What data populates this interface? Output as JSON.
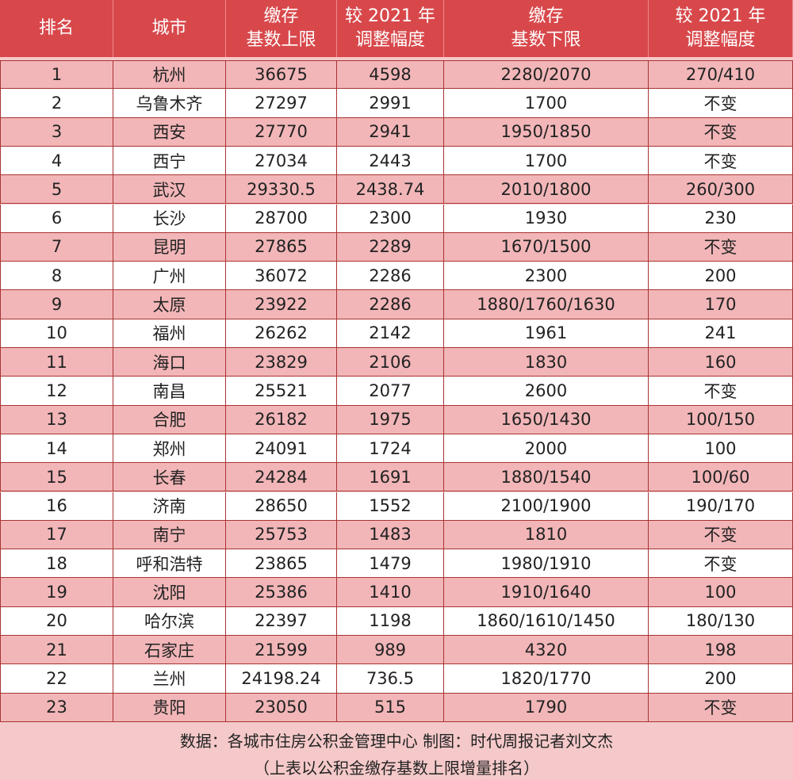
{
  "table": {
    "header": [
      [
        "排名"
      ],
      [
        "城市"
      ],
      [
        "缴存",
        "基数上限"
      ],
      [
        "较 2021 年",
        "调整幅度"
      ],
      [
        "缴存",
        "基数下限"
      ],
      [
        "较 2021 年",
        "调整幅度"
      ]
    ],
    "rows": [
      [
        "1",
        "杭州",
        "36675",
        "4598",
        "2280/2070",
        "270/410"
      ],
      [
        "2",
        "乌鲁木齐",
        "27297",
        "2991",
        "1700",
        "不变"
      ],
      [
        "3",
        "西安",
        "27770",
        "2941",
        "1950/1850",
        "不变"
      ],
      [
        "4",
        "西宁",
        "27034",
        "2443",
        "1700",
        "不变"
      ],
      [
        "5",
        "武汉",
        "29330.5",
        "2438.74",
        "2010/1800",
        "260/300"
      ],
      [
        "6",
        "长沙",
        "28700",
        "2300",
        "1930",
        "230"
      ],
      [
        "7",
        "昆明",
        "27865",
        "2289",
        "1670/1500",
        "不变"
      ],
      [
        "8",
        "广州",
        "36072",
        "2286",
        "2300",
        "200"
      ],
      [
        "9",
        "太原",
        "23922",
        "2286",
        "1880/1760/1630",
        "170"
      ],
      [
        "10",
        "福州",
        "26262",
        "2142",
        "1961",
        "241"
      ],
      [
        "11",
        "海口",
        "23829",
        "2106",
        "1830",
        "160"
      ],
      [
        "12",
        "南昌",
        "25521",
        "2077",
        "2600",
        "不变"
      ],
      [
        "13",
        "合肥",
        "26182",
        "1975",
        "1650/1430",
        "100/150"
      ],
      [
        "14",
        "郑州",
        "24091",
        "1724",
        "2000",
        "100"
      ],
      [
        "15",
        "长春",
        "24284",
        "1691",
        "1880/1540",
        "100/60"
      ],
      [
        "16",
        "济南",
        "28650",
        "1552",
        "2100/1900",
        "190/170"
      ],
      [
        "17",
        "南宁",
        "25753",
        "1483",
        "1810",
        "不变"
      ],
      [
        "18",
        "呼和浩特",
        "23865",
        "1479",
        "1980/1910",
        "不变"
      ],
      [
        "19",
        "沈阳",
        "25386",
        "1410",
        "1910/1640",
        "100"
      ],
      [
        "20",
        "哈尔滨",
        "22397",
        "1198",
        "1860/1610/1450",
        "180/130"
      ],
      [
        "21",
        "石家庄",
        "21599",
        "989",
        "4320",
        "198"
      ],
      [
        "22",
        "兰州",
        "24198.24",
        "736.5",
        "1820/1770",
        "200"
      ],
      [
        "23",
        "贵阳",
        "23050",
        "515",
        "1790",
        "不变"
      ]
    ]
  },
  "footer": [
    "数据：各城市住房公积金管理中心  制图：时代周报记者刘文杰",
    "（上表以公积金缴存基数上限增量排名）"
  ]
}
